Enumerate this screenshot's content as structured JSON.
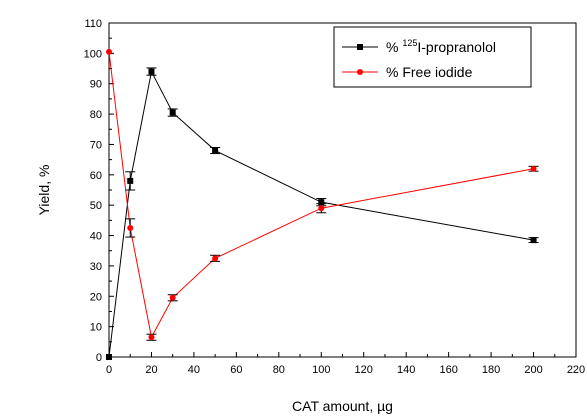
{
  "chart_data": {
    "type": "line",
    "title": "",
    "xlabel": "CAT amount, µg",
    "ylabel": "Yield, %",
    "xlim": [
      0,
      220
    ],
    "ylim": [
      0,
      110
    ],
    "xticks": [
      0,
      20,
      40,
      60,
      80,
      100,
      120,
      140,
      160,
      180,
      200,
      220
    ],
    "yticks": [
      0,
      10,
      20,
      30,
      40,
      50,
      60,
      70,
      80,
      90,
      100,
      110
    ],
    "grid": false,
    "legend_position": "top-right",
    "series": [
      {
        "name_prefix": "% ",
        "name_sup": "125",
        "name_suffix": "I-propranolol",
        "color": "#000000",
        "marker": "square",
        "x": [
          0,
          10,
          20,
          30,
          50,
          100,
          200
        ],
        "y": [
          0,
          58,
          94,
          80.5,
          68,
          51,
          38.5
        ],
        "err": [
          0,
          3,
          1.2,
          1.2,
          1,
          1.2,
          0.8
        ]
      },
      {
        "name": "% Free iodide",
        "color": "#ff0000",
        "marker": "circle",
        "x": [
          0,
          10,
          20,
          30,
          50,
          100,
          200
        ],
        "y": [
          100.5,
          42.5,
          6.5,
          19.5,
          32.5,
          49,
          62
        ],
        "err": [
          0,
          3,
          1,
          1,
          1,
          1.5,
          0.8
        ]
      }
    ]
  }
}
